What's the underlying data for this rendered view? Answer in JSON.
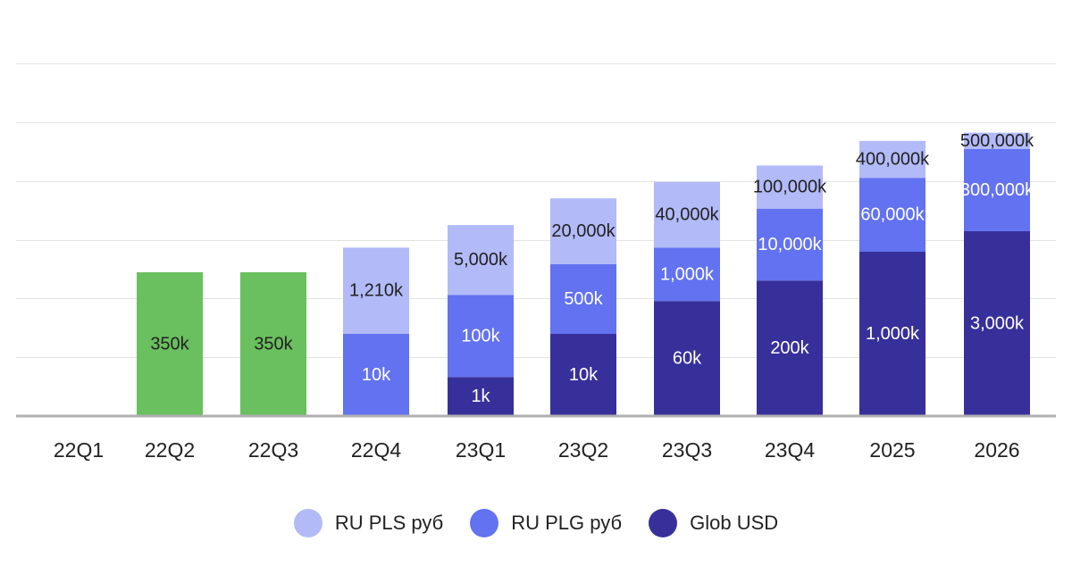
{
  "chart_data": {
    "type": "bar",
    "stacked": true,
    "categories": [
      "22Q1",
      "22Q2",
      "22Q3",
      "22Q4",
      "23Q1",
      "23Q2",
      "23Q3",
      "23Q4",
      "2025",
      "2026"
    ],
    "ylim": [
      0,
      100
    ],
    "grid": true,
    "legend_position": "bottom",
    "series": [
      {
        "name": "",
        "color": "#6abf5e",
        "text_color": "#222222",
        "show_in_legend": false,
        "values": [
          null,
          35,
          35,
          null,
          null,
          null,
          null,
          null,
          null,
          null
        ],
        "labels": [
          "",
          "350k",
          "350k",
          "",
          "",
          "",
          "",
          "",
          "",
          ""
        ]
      },
      {
        "name": "Glob USD",
        "color": "#37309b",
        "text_color": "#ffffff",
        "show_in_legend": true,
        "values": [
          null,
          null,
          null,
          null,
          9.5,
          20,
          28,
          33,
          40,
          45
        ],
        "labels": [
          "",
          "",
          "",
          "",
          "1k",
          "10k",
          "60k",
          "200k",
          "1,000k",
          "3,000k"
        ]
      },
      {
        "name": "RU PLG руб",
        "color": "#6272f1",
        "text_color": "#ffffff",
        "show_in_legend": true,
        "values": [
          null,
          null,
          null,
          20,
          20,
          17,
          13,
          17.5,
          18,
          20
        ],
        "labels": [
          "",
          "",
          "",
          "10k",
          "100k",
          "500k",
          "1,000k",
          "10,000k",
          "60,000k",
          "300,000k"
        ]
      },
      {
        "name": "RU PLS руб",
        "color": "#b2baf8",
        "text_color": "#222222",
        "show_in_legend": true,
        "values": [
          null,
          null,
          null,
          21,
          17,
          16,
          16,
          10.5,
          9,
          4
        ],
        "labels": [
          "",
          "",
          "",
          "1,210k",
          "5,000k",
          "20,000k",
          "40,000k",
          "100,000k",
          "400,000k",
          "500,000k"
        ]
      }
    ]
  }
}
